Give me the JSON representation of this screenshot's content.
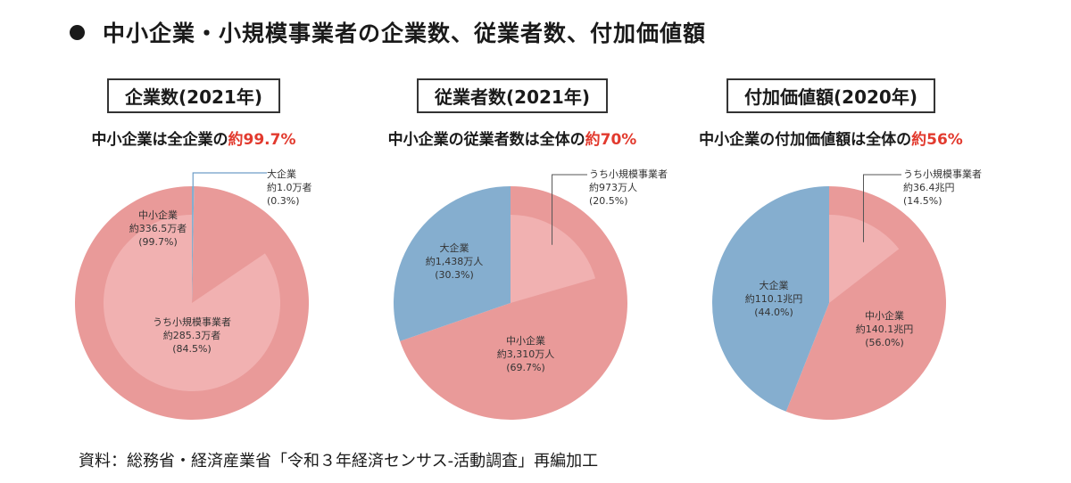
{
  "header": {
    "title": "中小企業・小規模事業者の企業数、従業者数、付加価値額"
  },
  "colors": {
    "sme": "#e99a99",
    "small": "#f1b1b1",
    "large": "#85aecf",
    "highlight": "#e23a2e"
  },
  "charts": [
    {
      "title": "企業数(2021年)",
      "sub_prefix": "中小企業は全企業の",
      "sub_highlight": "約99.7%",
      "labels": {
        "large": [
          "大企業",
          "約1.0万者",
          "(0.3%)"
        ],
        "sme": [
          "中小企業",
          "約336.5万者",
          "(99.7%)"
        ],
        "small": [
          "うち小規模事業者",
          "約285.3万者",
          "(84.5%)"
        ]
      }
    },
    {
      "title": "従業者数(2021年)",
      "sub_prefix": "中小企業の従業者数は全体の",
      "sub_highlight": "約70%",
      "labels": {
        "small": [
          "うち小規模事業者",
          "約973万人",
          "(20.5%)"
        ],
        "large": [
          "大企業",
          "約1,438万人",
          "(30.3%)"
        ],
        "sme": [
          "中小企業",
          "約3,310万人",
          "(69.7%)"
        ]
      }
    },
    {
      "title": "付加価値額(2020年)",
      "sub_prefix": "中小企業の付加価値額は全体の",
      "sub_highlight": "約56%",
      "labels": {
        "small": [
          "うち小規模事業者",
          "約36.4兆円",
          "(14.5%)"
        ],
        "large": [
          "大企業",
          "約110.1兆円",
          "(44.0%)"
        ],
        "sme": [
          "中小企業",
          "約140.1兆円",
          "(56.0%)"
        ]
      }
    }
  ],
  "chart_data": [
    {
      "type": "pie",
      "title": "企業数(2021年)",
      "slices": [
        {
          "label": "中小企業",
          "value": 99.7,
          "display": "約336.5万者"
        },
        {
          "label": "大企業",
          "value": 0.3,
          "display": "約1.0万者"
        }
      ],
      "inner": {
        "label": "うち小規模事業者",
        "value": 84.5,
        "display": "約285.3万者"
      }
    },
    {
      "type": "pie",
      "title": "従業者数(2021年)",
      "slices": [
        {
          "label": "中小企業",
          "value": 69.7,
          "display": "約3,310万人"
        },
        {
          "label": "大企業",
          "value": 30.3,
          "display": "約1,438万人"
        }
      ],
      "inner": {
        "label": "うち小規模事業者",
        "value": 20.5,
        "display": "約973万人"
      }
    },
    {
      "type": "pie",
      "title": "付加価値額(2020年)",
      "slices": [
        {
          "label": "中小企業",
          "value": 56.0,
          "display": "約140.1兆円"
        },
        {
          "label": "大企業",
          "value": 44.0,
          "display": "約110.1兆円"
        }
      ],
      "inner": {
        "label": "うち小規模事業者",
        "value": 14.5,
        "display": "約36.4兆円"
      }
    }
  ],
  "source": "資料：総務省・経済産業省「令和３年経済センサス‐活動調査」再編加工"
}
